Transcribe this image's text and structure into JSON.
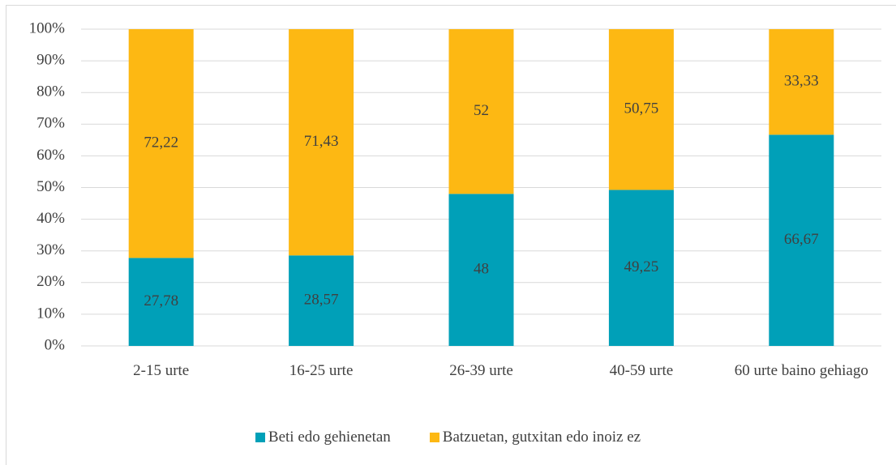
{
  "chart_data": {
    "type": "stacked_bar",
    "categories": [
      "2-15 urte",
      "16-25 urte",
      "26-39 urte",
      "40-59 urte",
      "60 urte baino gehiago"
    ],
    "series": [
      {
        "name": "Beti edo gehienetan",
        "color": "#00a0b8",
        "values": [
          27.78,
          28.57,
          48,
          49.25,
          66.67
        ],
        "value_labels": [
          "27,78",
          "28,57",
          "48",
          "49,25",
          "66,67"
        ]
      },
      {
        "name": "Batzuetan, gutxitan edo inoiz ez",
        "color": "#fdb813",
        "values": [
          72.22,
          71.43,
          52,
          50.75,
          33.33
        ],
        "value_labels": [
          "72,22",
          "71,43",
          "52",
          "50,75",
          "33,33"
        ]
      }
    ],
    "ylim": [
      0,
      100
    ],
    "yticks": [
      {
        "value": 0,
        "label": "0%"
      },
      {
        "value": 10,
        "label": "10%"
      },
      {
        "value": 20,
        "label": "20%"
      },
      {
        "value": 30,
        "label": "30%"
      },
      {
        "value": 40,
        "label": "40%"
      },
      {
        "value": 50,
        "label": "50%"
      },
      {
        "value": 60,
        "label": "60%"
      },
      {
        "value": 70,
        "label": "70%"
      },
      {
        "value": 80,
        "label": "80%"
      },
      {
        "value": 90,
        "label": "90%"
      },
      {
        "value": 100,
        "label": "100%"
      }
    ],
    "grid": true,
    "legend": "bottom"
  }
}
